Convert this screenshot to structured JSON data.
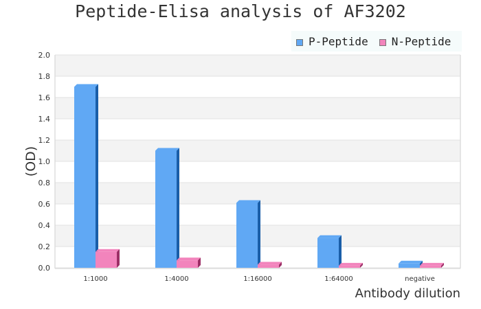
{
  "chart_data": {
    "type": "bar",
    "title": "Peptide-Elisa analysis of AF3202",
    "xlabel": "Antibody dilution",
    "ylabel": "(OD)",
    "categories": [
      "1:1000",
      "1:4000",
      "1:16000",
      "1:64000",
      "negative"
    ],
    "series": [
      {
        "name": "P-Peptide",
        "values": [
          1.7,
          1.1,
          0.61,
          0.28,
          0.04
        ],
        "color": "#60a8f4",
        "side_color": "#1a5ea8"
      },
      {
        "name": "N-Peptide",
        "values": [
          0.15,
          0.07,
          0.03,
          0.02,
          0.02
        ],
        "color": "#f284bc",
        "side_color": "#9c2f66"
      }
    ],
    "ylim": [
      0,
      2.0
    ],
    "yticks": [
      "0.0",
      "0.2",
      "0.4",
      "0.6",
      "0.8",
      "1.0",
      "1.2",
      "1.4",
      "1.6",
      "1.8",
      "2.0"
    ],
    "grid": true,
    "legend_position": "top-right"
  }
}
